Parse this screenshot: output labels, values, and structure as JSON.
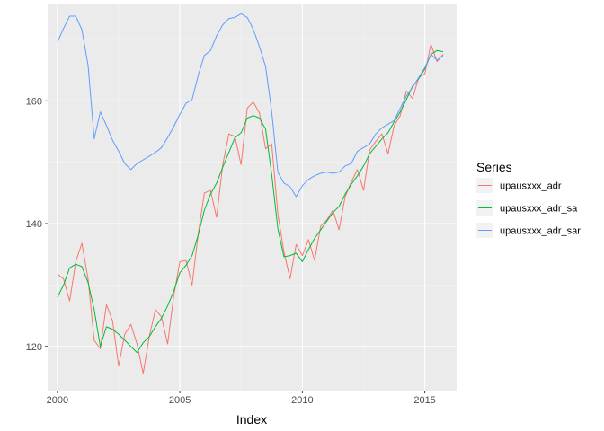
{
  "chart_data": {
    "type": "line",
    "xlabel": "Index",
    "ylabel": "",
    "xlim": [
      1999.6,
      2016.3
    ],
    "ylim": [
      112.8,
      175.7
    ],
    "x_ticks": [
      2000,
      2005,
      2010,
      2015
    ],
    "x_tick_labels": [
      "2000",
      "2005",
      "2010",
      "2015"
    ],
    "y_ticks": [
      120,
      140,
      160
    ],
    "y_tick_labels": [
      "120",
      "140",
      "160"
    ],
    "x_minor": [
      2002.5,
      2007.5,
      2012.5
    ],
    "y_minor": [
      130,
      150,
      170
    ],
    "grid": true,
    "background": "#ebebeb",
    "legend": {
      "title": "Series",
      "placement": "right",
      "labels": [
        "upausxxx_adr",
        "upausxxx_adr_sa",
        "upausxxx_adr_sar"
      ]
    },
    "series": [
      {
        "name": "upausxxx_adr",
        "color": "#f8766d",
        "x": [
          2000.0,
          2000.25,
          2000.5,
          2000.75,
          2001.0,
          2001.25,
          2001.5,
          2001.75,
          2002.0,
          2002.25,
          2002.5,
          2002.75,
          2003.0,
          2003.25,
          2003.5,
          2003.75,
          2004.0,
          2004.25,
          2004.5,
          2004.75,
          2005.0,
          2005.25,
          2005.5,
          2005.75,
          2006.0,
          2006.25,
          2006.5,
          2006.75,
          2007.0,
          2007.25,
          2007.5,
          2007.75,
          2008.0,
          2008.25,
          2008.5,
          2008.75,
          2009.0,
          2009.25,
          2009.5,
          2009.75,
          2010.0,
          2010.25,
          2010.5,
          2010.75,
          2011.0,
          2011.25,
          2011.5,
          2011.75,
          2012.0,
          2012.25,
          2012.5,
          2012.75,
          2013.0,
          2013.25,
          2013.5,
          2013.75,
          2014.0,
          2014.25,
          2014.5,
          2014.75,
          2015.0,
          2015.25,
          2015.5,
          2015.75
        ],
        "y": [
          131.8,
          131.0,
          127.4,
          133.8,
          136.8,
          131.0,
          121.0,
          119.6,
          126.8,
          124.2,
          116.8,
          122.0,
          123.6,
          120.4,
          115.6,
          121.6,
          126.0,
          124.8,
          120.4,
          128.2,
          133.8,
          134.0,
          130.0,
          138.4,
          145.0,
          145.4,
          141.0,
          149.6,
          154.6,
          154.2,
          149.6,
          158.8,
          159.8,
          158.0,
          152.2,
          153.0,
          141.6,
          135.4,
          131.0,
          136.6,
          134.8,
          137.4,
          134.0,
          139.6,
          140.6,
          142.2,
          139.0,
          144.4,
          146.8,
          148.8,
          145.4,
          152.0,
          153.4,
          154.6,
          151.4,
          156.0,
          157.6,
          161.6,
          160.4,
          163.8,
          164.4,
          169.2,
          166.4,
          167.6
        ]
      },
      {
        "name": "upausxxx_adr_sa",
        "color": "#00ba38",
        "x": [
          2000.0,
          2000.25,
          2000.5,
          2000.75,
          2001.0,
          2001.25,
          2001.5,
          2001.75,
          2002.0,
          2002.25,
          2002.5,
          2002.75,
          2003.0,
          2003.25,
          2003.5,
          2003.75,
          2004.0,
          2004.25,
          2004.5,
          2004.75,
          2005.0,
          2005.25,
          2005.5,
          2005.75,
          2006.0,
          2006.25,
          2006.5,
          2006.75,
          2007.0,
          2007.25,
          2007.5,
          2007.75,
          2008.0,
          2008.25,
          2008.5,
          2008.75,
          2009.0,
          2009.25,
          2009.5,
          2009.75,
          2010.0,
          2010.25,
          2010.5,
          2010.75,
          2011.0,
          2011.25,
          2011.5,
          2011.75,
          2012.0,
          2012.25,
          2012.5,
          2012.75,
          2013.0,
          2013.25,
          2013.5,
          2013.75,
          2014.0,
          2014.25,
          2014.5,
          2014.75,
          2015.0,
          2015.25,
          2015.5,
          2015.75
        ],
        "y": [
          128.0,
          130.0,
          132.8,
          133.4,
          133.0,
          130.4,
          126.0,
          120.0,
          123.2,
          122.8,
          122.0,
          121.0,
          120.0,
          119.0,
          120.6,
          121.6,
          123.2,
          124.6,
          126.6,
          129.0,
          132.0,
          133.2,
          134.8,
          138.2,
          142.2,
          144.8,
          146.6,
          149.2,
          151.6,
          154.0,
          154.8,
          157.2,
          157.6,
          157.2,
          155.4,
          148.0,
          139.2,
          134.6,
          134.8,
          135.2,
          133.8,
          135.8,
          137.6,
          139.0,
          140.4,
          141.8,
          142.8,
          144.8,
          146.4,
          147.8,
          149.4,
          151.4,
          152.6,
          153.8,
          154.8,
          156.6,
          158.2,
          160.2,
          162.4,
          163.6,
          165.2,
          167.6,
          168.2,
          168.0
        ]
      },
      {
        "name": "upausxxx_adr_sar",
        "color": "#619cff",
        "x": [
          2000.0,
          2000.25,
          2000.5,
          2000.75,
          2001.0,
          2001.25,
          2001.5,
          2001.75,
          2002.0,
          2002.25,
          2002.5,
          2002.75,
          2003.0,
          2003.25,
          2003.5,
          2003.75,
          2004.0,
          2004.25,
          2004.5,
          2004.75,
          2005.0,
          2005.25,
          2005.5,
          2005.75,
          2006.0,
          2006.25,
          2006.5,
          2006.75,
          2007.0,
          2007.25,
          2007.5,
          2007.75,
          2008.0,
          2008.25,
          2008.5,
          2008.75,
          2009.0,
          2009.25,
          2009.5,
          2009.75,
          2010.0,
          2010.25,
          2010.5,
          2010.75,
          2011.0,
          2011.25,
          2011.5,
          2011.75,
          2012.0,
          2012.25,
          2012.5,
          2012.75,
          2013.0,
          2013.25,
          2013.5,
          2013.75,
          2014.0,
          2014.25,
          2014.5,
          2014.75,
          2015.0,
          2015.25,
          2015.5,
          2015.75
        ],
        "y": [
          169.6,
          171.8,
          173.8,
          173.8,
          171.6,
          165.8,
          153.8,
          158.2,
          156.0,
          153.6,
          151.8,
          149.8,
          148.8,
          149.8,
          150.4,
          151.0,
          151.6,
          152.4,
          154.0,
          155.8,
          157.8,
          159.6,
          160.2,
          164.2,
          167.4,
          168.2,
          170.6,
          172.4,
          173.4,
          173.6,
          174.2,
          173.6,
          171.6,
          168.8,
          165.6,
          158.2,
          148.4,
          146.6,
          146.0,
          144.4,
          146.2,
          147.2,
          147.8,
          148.2,
          148.4,
          148.2,
          148.4,
          149.4,
          149.8,
          151.8,
          152.4,
          153.0,
          154.6,
          155.6,
          156.2,
          156.8,
          158.8,
          160.8,
          162.2,
          163.8,
          165.4,
          167.6,
          166.6,
          167.4
        ]
      }
    ]
  }
}
